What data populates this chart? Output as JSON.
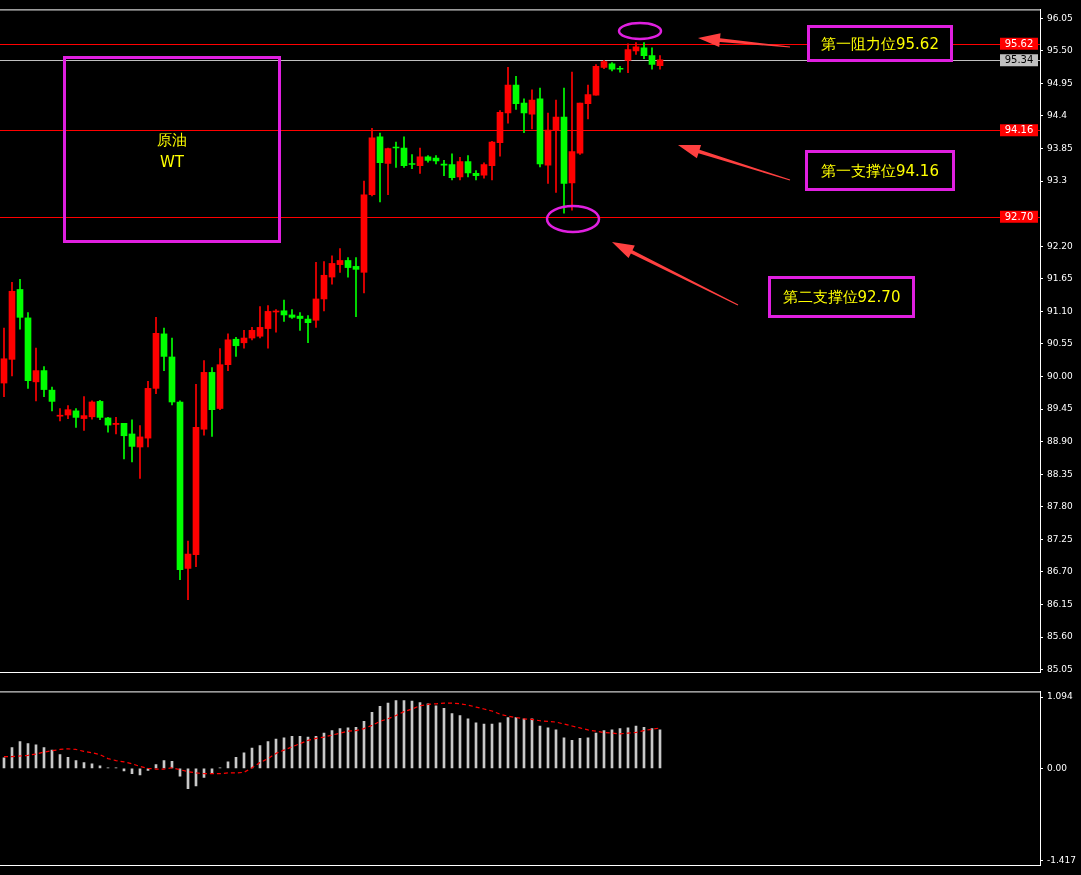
{
  "chart_data": [
    {
      "type": "candlestick",
      "categories": [
        null,
        null,
        null,
        null,
        null,
        null,
        null,
        null,
        null,
        null,
        null,
        null,
        null,
        null,
        null,
        null,
        null,
        null,
        null,
        null,
        null,
        null,
        null,
        null,
        null,
        null,
        null,
        null,
        null,
        null,
        null,
        null,
        null,
        null,
        null,
        null,
        null,
        null,
        null,
        null,
        null,
        null,
        null,
        null,
        null,
        null,
        null,
        null,
        null,
        null,
        null,
        null,
        null,
        null,
        null,
        null,
        null,
        null,
        null,
        null,
        null,
        null,
        null,
        null,
        null,
        null,
        null,
        null,
        null,
        null,
        null,
        null,
        null,
        null,
        null,
        null,
        null,
        null,
        null,
        null,
        null,
        null,
        null,
        null,
        null,
        null,
        null,
        null,
        null,
        null,
        null,
        null,
        null,
        null,
        null,
        null,
        null,
        null,
        null,
        null,
        null,
        null,
        null,
        null,
        null,
        null,
        null,
        null,
        null,
        null,
        null,
        null,
        null,
        null,
        null,
        null,
        null,
        null,
        null,
        null,
        null,
        null,
        null,
        null,
        null,
        null,
        null,
        null,
        null,
        null
      ],
      "ohlc": [
        [
          89.89,
          90.82,
          89.66,
          90.3
        ],
        [
          90.29,
          91.59,
          90.01,
          91.44
        ],
        [
          91.47,
          91.64,
          90.8,
          91.0
        ],
        [
          90.99,
          91.08,
          89.8,
          89.93
        ],
        [
          89.91,
          90.48,
          89.59,
          90.1
        ],
        [
          90.1,
          90.17,
          89.66,
          89.78
        ],
        [
          89.77,
          89.82,
          89.42,
          89.58
        ],
        [
          89.33,
          89.46,
          89.25,
          89.34
        ],
        [
          89.35,
          89.51,
          89.29,
          89.44
        ],
        [
          89.42,
          89.46,
          89.14,
          89.31
        ],
        [
          89.29,
          89.66,
          89.09,
          89.34
        ],
        [
          89.32,
          89.59,
          89.28,
          89.57
        ],
        [
          89.58,
          89.6,
          89.27,
          89.31
        ],
        [
          89.3,
          89.31,
          89.06,
          89.18
        ],
        [
          89.19,
          89.31,
          89.03,
          89.21
        ],
        [
          89.21,
          89.21,
          88.61,
          89.0
        ],
        [
          89.03,
          89.27,
          88.56,
          88.82
        ],
        [
          88.81,
          89.17,
          88.28,
          88.98
        ],
        [
          88.96,
          89.92,
          88.81,
          89.8
        ],
        [
          89.8,
          91.0,
          89.71,
          90.73
        ],
        [
          90.72,
          90.82,
          90.1,
          90.34
        ],
        [
          90.33,
          90.65,
          89.52,
          89.57
        ],
        [
          89.57,
          89.59,
          86.57,
          86.74
        ],
        [
          86.76,
          87.22,
          86.23,
          87.0
        ],
        [
          86.99,
          89.87,
          86.79,
          89.14
        ],
        [
          89.11,
          90.27,
          89.01,
          90.07
        ],
        [
          90.07,
          90.15,
          88.99,
          89.44
        ],
        [
          89.46,
          90.47,
          89.44,
          90.2
        ],
        [
          90.2,
          90.72,
          90.1,
          90.62
        ],
        [
          90.63,
          90.66,
          90.34,
          90.52
        ],
        [
          90.57,
          90.78,
          90.48,
          90.65
        ],
        [
          90.65,
          90.83,
          90.62,
          90.78
        ],
        [
          90.68,
          91.18,
          90.65,
          90.83
        ],
        [
          90.81,
          91.2,
          90.48,
          91.1
        ],
        [
          91.09,
          91.13,
          90.75,
          91.1
        ],
        [
          91.11,
          91.29,
          90.93,
          91.04
        ],
        [
          91.04,
          91.13,
          90.98,
          91.0
        ],
        [
          91.02,
          91.08,
          90.78,
          90.98
        ],
        [
          90.97,
          91.03,
          90.57,
          90.91
        ],
        [
          90.95,
          91.93,
          90.83,
          91.31
        ],
        [
          91.31,
          91.94,
          91.11,
          91.71
        ],
        [
          91.68,
          92.04,
          91.56,
          91.91
        ],
        [
          91.89,
          92.16,
          91.76,
          91.96
        ],
        [
          91.96,
          92.01,
          91.68,
          91.84
        ],
        [
          91.86,
          92.01,
          91.01,
          91.81
        ],
        [
          91.76,
          93.3,
          91.41,
          93.07
        ],
        [
          93.07,
          94.19,
          93.05,
          94.03
        ],
        [
          94.05,
          94.11,
          92.95,
          93.61
        ],
        [
          93.6,
          93.86,
          93.07,
          93.85
        ],
        [
          93.87,
          93.96,
          93.53,
          93.86
        ],
        [
          93.86,
          94.05,
          93.53,
          93.56
        ],
        [
          93.59,
          93.75,
          93.51,
          93.58
        ],
        [
          93.56,
          93.86,
          93.43,
          93.71
        ],
        [
          93.71,
          93.73,
          93.62,
          93.65
        ],
        [
          93.69,
          93.73,
          93.59,
          93.64
        ],
        [
          93.58,
          93.65,
          93.39,
          93.57
        ],
        [
          93.58,
          93.76,
          93.32,
          93.36
        ],
        [
          93.37,
          93.7,
          93.32,
          93.63
        ],
        [
          93.63,
          93.73,
          93.37,
          93.44
        ],
        [
          93.43,
          93.48,
          93.32,
          93.39
        ],
        [
          93.4,
          93.61,
          93.35,
          93.58
        ],
        [
          93.56,
          93.97,
          93.32,
          93.96
        ],
        [
          93.95,
          94.49,
          93.72,
          94.46
        ],
        [
          94.45,
          95.22,
          94.28,
          94.92
        ],
        [
          94.92,
          95.07,
          94.51,
          94.61
        ],
        [
          94.62,
          94.69,
          94.12,
          94.45
        ],
        [
          94.43,
          94.84,
          94.18,
          94.67
        ],
        [
          94.69,
          94.87,
          93.54,
          93.59
        ],
        [
          93.57,
          94.45,
          93.26,
          94.16
        ],
        [
          94.15,
          94.67,
          93.11,
          94.38
        ],
        [
          94.38,
          94.87,
          92.76,
          93.26
        ],
        [
          93.27,
          95.14,
          92.81,
          93.8
        ],
        [
          93.77,
          94.62,
          93.75,
          94.62
        ],
        [
          94.61,
          94.92,
          94.35,
          94.76
        ],
        [
          94.75,
          95.27,
          94.75,
          95.24
        ],
        [
          95.22,
          95.34,
          95.2,
          95.32
        ],
        [
          95.28,
          95.3,
          95.16,
          95.19
        ],
        [
          95.2,
          95.24,
          95.14,
          95.19
        ],
        [
          95.34,
          95.62,
          95.13,
          95.52
        ],
        [
          95.5,
          95.64,
          95.44,
          95.57
        ],
        [
          95.55,
          95.64,
          95.37,
          95.42
        ],
        [
          95.42,
          95.55,
          95.19,
          95.27
        ],
        [
          95.25,
          95.42,
          95.19,
          95.35
        ],
        null,
        null,
        null,
        null,
        null,
        null,
        null,
        null,
        null,
        null,
        null,
        null,
        null,
        null,
        null,
        null,
        null,
        null,
        null,
        null,
        null,
        null,
        null,
        null,
        null,
        null,
        null,
        null,
        null,
        null,
        null,
        null,
        null,
        null,
        null,
        null,
        null,
        null,
        null,
        null,
        null,
        null,
        null,
        null,
        null,
        null,
        null
      ],
      "colors": [
        "#ff0000",
        "#ff0000",
        "#00ff00",
        "#00ff00",
        "#ff0000",
        "#00ff00",
        "#00ff00",
        "#ff0000",
        "#ff0000",
        "#00ff00",
        "#ff0000",
        "#ff0000",
        "#00ff00",
        "#00ff00",
        "#ff0000",
        "#00ff00",
        "#00ff00",
        "#ff0000",
        "#ff0000",
        "#ff0000",
        "#00ff00",
        "#00ff00",
        "#00ff00",
        "#ff0000",
        "#ff0000",
        "#ff0000",
        "#00ff00",
        "#ff0000",
        "#ff0000",
        "#00ff00",
        "#ff0000",
        "#ff0000",
        "#ff0000",
        "#ff0000",
        "#ff0000",
        "#00ff00",
        "#00ff00",
        "#00ff00",
        "#00ff00",
        "#ff0000",
        "#ff0000",
        "#ff0000",
        "#ff0000",
        "#00ff00",
        "#00ff00",
        "#ff0000",
        "#ff0000",
        "#00ff00",
        "#ff0000",
        "#00ff00",
        "#00ff00",
        "#00ff00",
        "#ff0000",
        "#00ff00",
        "#00ff00",
        "#00ff00",
        "#00ff00",
        "#ff0000",
        "#00ff00",
        "#00ff00",
        "#ff0000",
        "#ff0000",
        "#ff0000",
        "#ff0000",
        "#00ff00",
        "#00ff00",
        "#ff0000",
        "#00ff00",
        "#ff0000",
        "#ff0000",
        "#00ff00",
        "#ff0000",
        "#ff0000",
        "#ff0000",
        "#ff0000",
        "#ff0000",
        "#00ff00",
        "#00ff00",
        "#ff0000",
        "#ff0000",
        "#00ff00",
        "#00ff00",
        "#ff0000",
        null,
        null,
        null,
        null,
        null,
        null,
        null,
        null,
        null,
        null,
        null,
        null,
        null,
        null,
        null,
        null,
        null,
        null,
        null,
        null,
        null,
        null,
        null,
        null,
        null,
        null,
        null,
        null,
        null,
        null,
        null,
        null,
        null,
        null,
        null,
        null,
        null,
        null,
        null,
        null,
        null,
        null,
        null,
        null,
        null,
        null,
        null
      ],
      "ylim": [
        85.0,
        96.2
      ],
      "yticks": [
        96.05,
        {
          "value": 95.5,
          "label": "95.50"
        },
        94.95,
        94.4,
        93.85,
        93.3,
        {
          "value": 92.2,
          "label": "92.20"
        },
        91.65,
        {
          "value": 91.1,
          "label": "91.10"
        },
        90.55,
        {
          "value": 90,
          "label": "90.00"
        },
        89.45,
        {
          "value": 88.9,
          "label": "88.90"
        },
        88.35,
        {
          "value": 87.8,
          "label": "87.80"
        },
        87.25,
        {
          "value": 86.7,
          "label": "86.70"
        },
        86.15,
        {
          "value": 85.6,
          "label": "85.60"
        },
        85.05
      ],
      "ref_lines": [
        {
          "axis": "y",
          "value": 95.62,
          "label": "95.62",
          "color": "#ff0000"
        },
        {
          "axis": "y",
          "value": 95.34,
          "label": "95.34",
          "color": "#c0c0c0"
        },
        {
          "axis": "y",
          "value": 94.16,
          "label": "94.16",
          "color": "#ff0000"
        },
        {
          "axis": "y",
          "value": 92.7,
          "label": "92.70",
          "color": "#ff0000"
        }
      ],
      "annotations": [
        "原油\nWT",
        "第一阻力位95.62",
        "第一支撑位94.16",
        "第二支撑位92.70"
      ],
      "tick_labels": "y",
      "grid": false,
      "legend": false
    },
    {
      "type": "bar",
      "categories": [
        null,
        null,
        null,
        null,
        null,
        null,
        null,
        null,
        null,
        null,
        null,
        null,
        null,
        null,
        null,
        null,
        null,
        null,
        null,
        null,
        null,
        null,
        null,
        null,
        null,
        null,
        null,
        null,
        null,
        null,
        null,
        null,
        null,
        null,
        null,
        null,
        null,
        null,
        null,
        null,
        null,
        null,
        null,
        null,
        null,
        null,
        null,
        null,
        null,
        null,
        null,
        null,
        null,
        null,
        null,
        null,
        null,
        null,
        null,
        null,
        null,
        null,
        null,
        null,
        null,
        null,
        null,
        null,
        null,
        null,
        null,
        null,
        null,
        null,
        null,
        null,
        null,
        null,
        null,
        null,
        null,
        null,
        null,
        null,
        null,
        null,
        null,
        null,
        null,
        null,
        null,
        null,
        null,
        null,
        null,
        null,
        null,
        null,
        null,
        null,
        null,
        null,
        null,
        null,
        null,
        null,
        null,
        null,
        null,
        null,
        null,
        null,
        null,
        null,
        null,
        null,
        null,
        null,
        null,
        null,
        null,
        null,
        null,
        null,
        null,
        null,
        null,
        null,
        null,
        null
      ],
      "series": [
        {
          "type": "bar",
          "color": "#c8c8c8",
          "values": [
            0.16,
            0.32,
            0.41,
            0.38,
            0.36,
            0.32,
            0.28,
            0.21,
            0.17,
            0.12,
            0.09,
            0.07,
            0.04,
            0.01,
            0.01,
            -0.04,
            -0.08,
            -0.1,
            -0.03,
            0.06,
            0.12,
            0.11,
            -0.12,
            -0.31,
            -0.27,
            -0.14,
            -0.08,
            0.01,
            0.1,
            0.17,
            0.24,
            0.31,
            0.35,
            0.41,
            0.45,
            0.47,
            0.49,
            0.49,
            0.48,
            0.49,
            0.54,
            0.58,
            0.61,
            0.62,
            0.63,
            0.72,
            0.86,
            0.95,
            1.0,
            1.04,
            1.04,
            1.03,
            1.01,
            0.99,
            0.96,
            0.92,
            0.84,
            0.81,
            0.76,
            0.7,
            0.68,
            0.68,
            0.7,
            0.78,
            0.78,
            0.76,
            0.76,
            0.65,
            0.62,
            0.59,
            0.47,
            0.43,
            0.46,
            0.47,
            0.54,
            0.58,
            0.59,
            0.61,
            0.62,
            0.65,
            0.63,
            0.61,
            0.59,
            null,
            null,
            null,
            null,
            null,
            null,
            null,
            null,
            null,
            null,
            null,
            null,
            null,
            null,
            null,
            null,
            null,
            null,
            null,
            null,
            null,
            null,
            null,
            null,
            null,
            null,
            null,
            null,
            null,
            null,
            null,
            null,
            null,
            null,
            null,
            null,
            null,
            null,
            null,
            null,
            null,
            null,
            null,
            null,
            null,
            null,
            null
          ]
        },
        {
          "type": "line",
          "color": "#ff0000",
          "line_style": "dashed",
          "marker": "none",
          "values": [
            0.18,
            0.18,
            0.19,
            0.2,
            0.22,
            0.25,
            0.27,
            0.29,
            0.3,
            0.29,
            0.26,
            0.24,
            0.21,
            0.15,
            0.12,
            0.1,
            0.07,
            0.03,
            0.0,
            -0.01,
            -0.01,
            0.01,
            -0.02,
            -0.05,
            -0.07,
            -0.08,
            -0.08,
            -0.08,
            -0.07,
            -0.07,
            -0.06,
            0.01,
            0.09,
            0.15,
            0.23,
            0.28,
            0.33,
            0.38,
            0.43,
            0.46,
            0.48,
            0.51,
            0.54,
            0.57,
            0.58,
            0.61,
            0.66,
            0.72,
            0.76,
            0.81,
            0.87,
            0.91,
            0.96,
            0.98,
            0.99,
            1.0,
            1.0,
            0.99,
            0.97,
            0.94,
            0.91,
            0.88,
            0.83,
            0.8,
            0.78,
            0.76,
            0.75,
            0.73,
            0.72,
            0.71,
            0.68,
            0.65,
            0.62,
            0.59,
            0.57,
            0.55,
            0.54,
            0.53,
            0.54,
            0.55,
            0.58,
            0.6,
            0.62,
            null,
            null,
            null,
            null,
            null,
            null,
            null,
            null,
            null,
            null,
            null,
            null,
            null,
            null,
            null,
            null,
            null,
            null,
            null,
            null,
            null,
            null,
            null,
            null,
            null,
            null,
            null,
            null,
            null,
            null,
            null,
            null,
            null,
            null,
            null,
            null,
            null,
            null,
            null,
            null,
            null,
            null,
            null,
            null,
            null,
            null,
            null
          ]
        }
      ],
      "ylim": [
        -1.49,
        1.18
      ],
      "yticks": [
        1.094,
        {
          "value": 0,
          "label": "0.00"
        },
        -1.417
      ],
      "tick_labels": "y",
      "grid": false,
      "legend": false
    }
  ]
}
